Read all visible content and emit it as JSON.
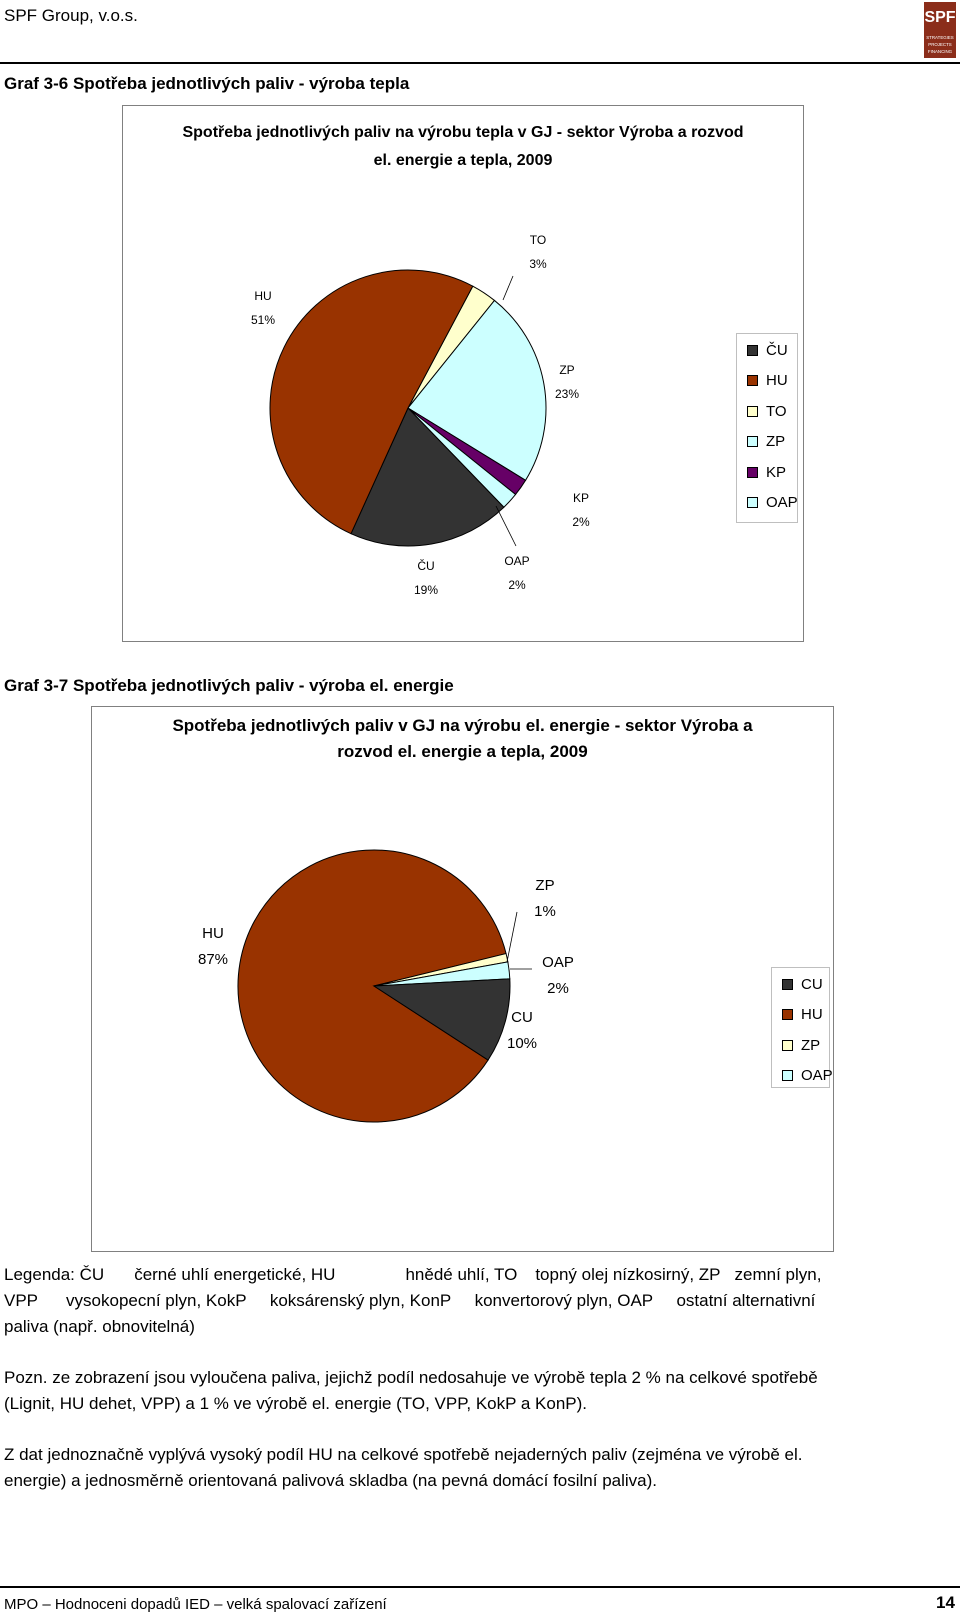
{
  "header": {
    "company": "SPF Group, v.o.s.",
    "logo": {
      "letters": "SPF",
      "tagline1": "STRATEGIES",
      "tagline2": "PROJECTS",
      "tagline3": "FINANCING"
    }
  },
  "graf1_caption": "Graf 3-6 Spotřeba jednotlivých paliv - výroba tepla",
  "graf2_caption": "Graf 3-7 Spotřeba jednotlivých paliv - výroba el. energie",
  "chart_data": [
    {
      "type": "pie",
      "title_line1": "Spotřeba jednotlivých paliv na výrobu tepla v GJ - sektor Výroba a rozvod",
      "title_line2": "el. energie a tepla, 2009",
      "categories": [
        "ČU",
        "HU",
        "TO",
        "ZP",
        "KP",
        "OAP"
      ],
      "values": [
        19,
        51,
        3,
        23,
        2,
        2
      ],
      "value_labels": [
        "19%",
        "51%",
        "3%",
        "23%",
        "2%",
        "2%"
      ],
      "colors": [
        "#333333",
        "#993300",
        "#ffffcc",
        "#ccffff",
        "#660066",
        "#ccffff"
      ],
      "legend_position": "right"
    },
    {
      "type": "pie",
      "title_line1": "Spotřeba jednotlivých paliv v GJ na výrobu el. energie - sektor Výroba a",
      "title_line2": "rozvod el. energie a tepla, 2009",
      "categories": [
        "CU",
        "HU",
        "ZP",
        "OAP"
      ],
      "values": [
        10,
        87,
        1,
        2
      ],
      "value_labels": [
        "10%",
        "87%",
        "1%",
        "2%"
      ],
      "colors": [
        "#333333",
        "#993300",
        "#ffffcc",
        "#ccffff"
      ],
      "legend_position": "right"
    }
  ],
  "legend_text": {
    "line1": [
      {
        "code": "Legenda: ČU",
        "desc": "černé uhlí energetické, HU"
      },
      {
        "code": "",
        "desc": "hnědé uhlí, TO"
      },
      {
        "code": "",
        "desc": "topný olej nízkosirný, ZP"
      },
      {
        "code": "",
        "desc": "zemní plyn,"
      }
    ],
    "line2": "VPP      vysokopecní plyn, KokP     koksárenský plyn, KonP     konvertorový plyn, OAP     ostatní alternativní",
    "line3": "paliva (např. obnovitelná)"
  },
  "note": {
    "line1": "Pozn. ze zobrazení jsou vyloučena paliva, jejichž podíl nedosahuje ve výrobě tepla 2 % na celkové spotřebě",
    "line2": "(Lignit, HU dehet, VPP) a 1 % ve výrobě el. energie (TO, VPP, KokP a KonP)."
  },
  "conclusion": {
    "line1": "Z dat jednoznačně vyplývá vysoký podíl HU na celkové spotřebě nejaderných paliv (zejména ve výrobě el.",
    "line2": "energie) a jednosměrně orientovaná palivová skladba (na pevná domácí fosilní paliva)."
  },
  "footer": {
    "text": "MPO – Hodnoceni dopadů IED – velká spalovací zařízení",
    "page": "14"
  }
}
